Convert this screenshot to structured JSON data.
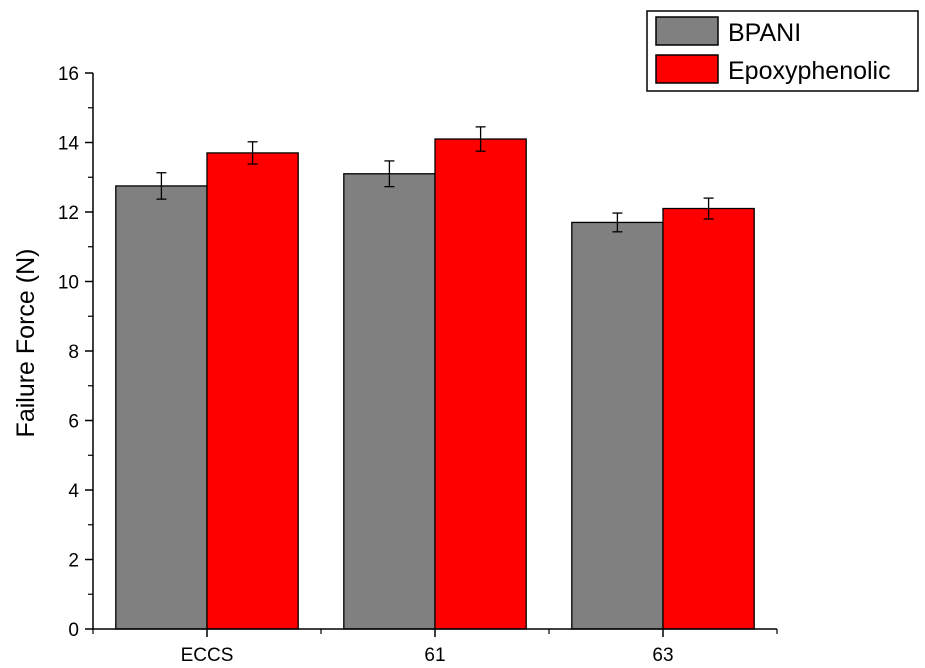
{
  "chart_data": {
    "type": "bar",
    "title": "",
    "xlabel": "",
    "ylabel": "Failure Force (N)",
    "ylim": [
      0,
      16
    ],
    "yticks": [
      0,
      2,
      4,
      6,
      8,
      10,
      12,
      14,
      16
    ],
    "categories": [
      "ECCS",
      "61",
      "63"
    ],
    "series": [
      {
        "name": "BPANI",
        "color": "#808080",
        "values": [
          12.75,
          13.1,
          11.7
        ],
        "errors": [
          0.38,
          0.37,
          0.27
        ]
      },
      {
        "name": "Epoxyphenolic",
        "color": "#ff0000",
        "values": [
          13.7,
          14.1,
          12.1
        ],
        "errors": [
          0.32,
          0.35,
          0.3
        ]
      }
    ],
    "grid": false,
    "legend_position": "top-right"
  }
}
